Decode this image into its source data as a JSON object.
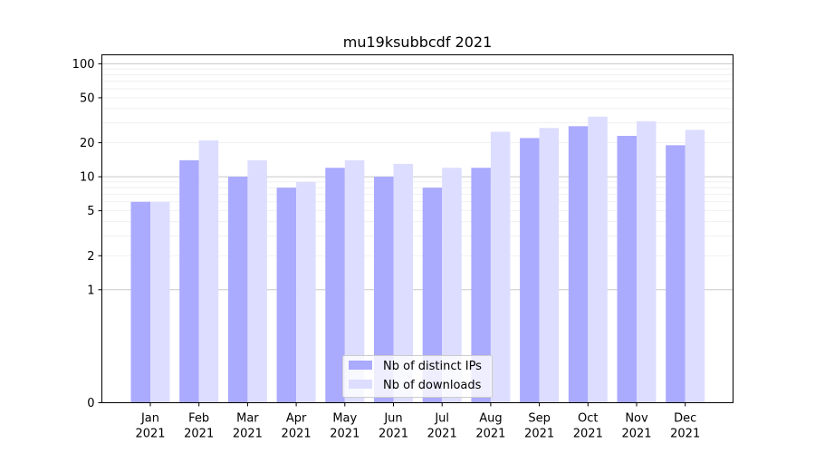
{
  "chart_data": {
    "type": "bar",
    "title": "mu19ksubbcdf 2021",
    "xlabel": "",
    "ylabel": "",
    "scale": "symlog",
    "categories": [
      [
        "Jan",
        "2021"
      ],
      [
        "Feb",
        "2021"
      ],
      [
        "Mar",
        "2021"
      ],
      [
        "Apr",
        "2021"
      ],
      [
        "May",
        "2021"
      ],
      [
        "Jun",
        "2021"
      ],
      [
        "Jul",
        "2021"
      ],
      [
        "Aug",
        "2021"
      ],
      [
        "Sep",
        "2021"
      ],
      [
        "Oct",
        "2021"
      ],
      [
        "Nov",
        "2021"
      ],
      [
        "Dec",
        "2021"
      ]
    ],
    "series": [
      {
        "name": "Nb of distinct IPs",
        "color": "#aaaaff",
        "values": [
          6,
          14,
          10,
          8,
          12,
          10,
          8,
          12,
          22,
          28,
          23,
          19
        ]
      },
      {
        "name": "Nb of downloads",
        "color": "#ddddff",
        "values": [
          6,
          21,
          14,
          9,
          14,
          13,
          12,
          25,
          27,
          34,
          31,
          26
        ]
      }
    ],
    "yticks": [
      0,
      1,
      2,
      5,
      10,
      20,
      50,
      100
    ],
    "ylim": [
      0,
      120
    ],
    "grid": true,
    "legend_position": "bottom-center"
  }
}
